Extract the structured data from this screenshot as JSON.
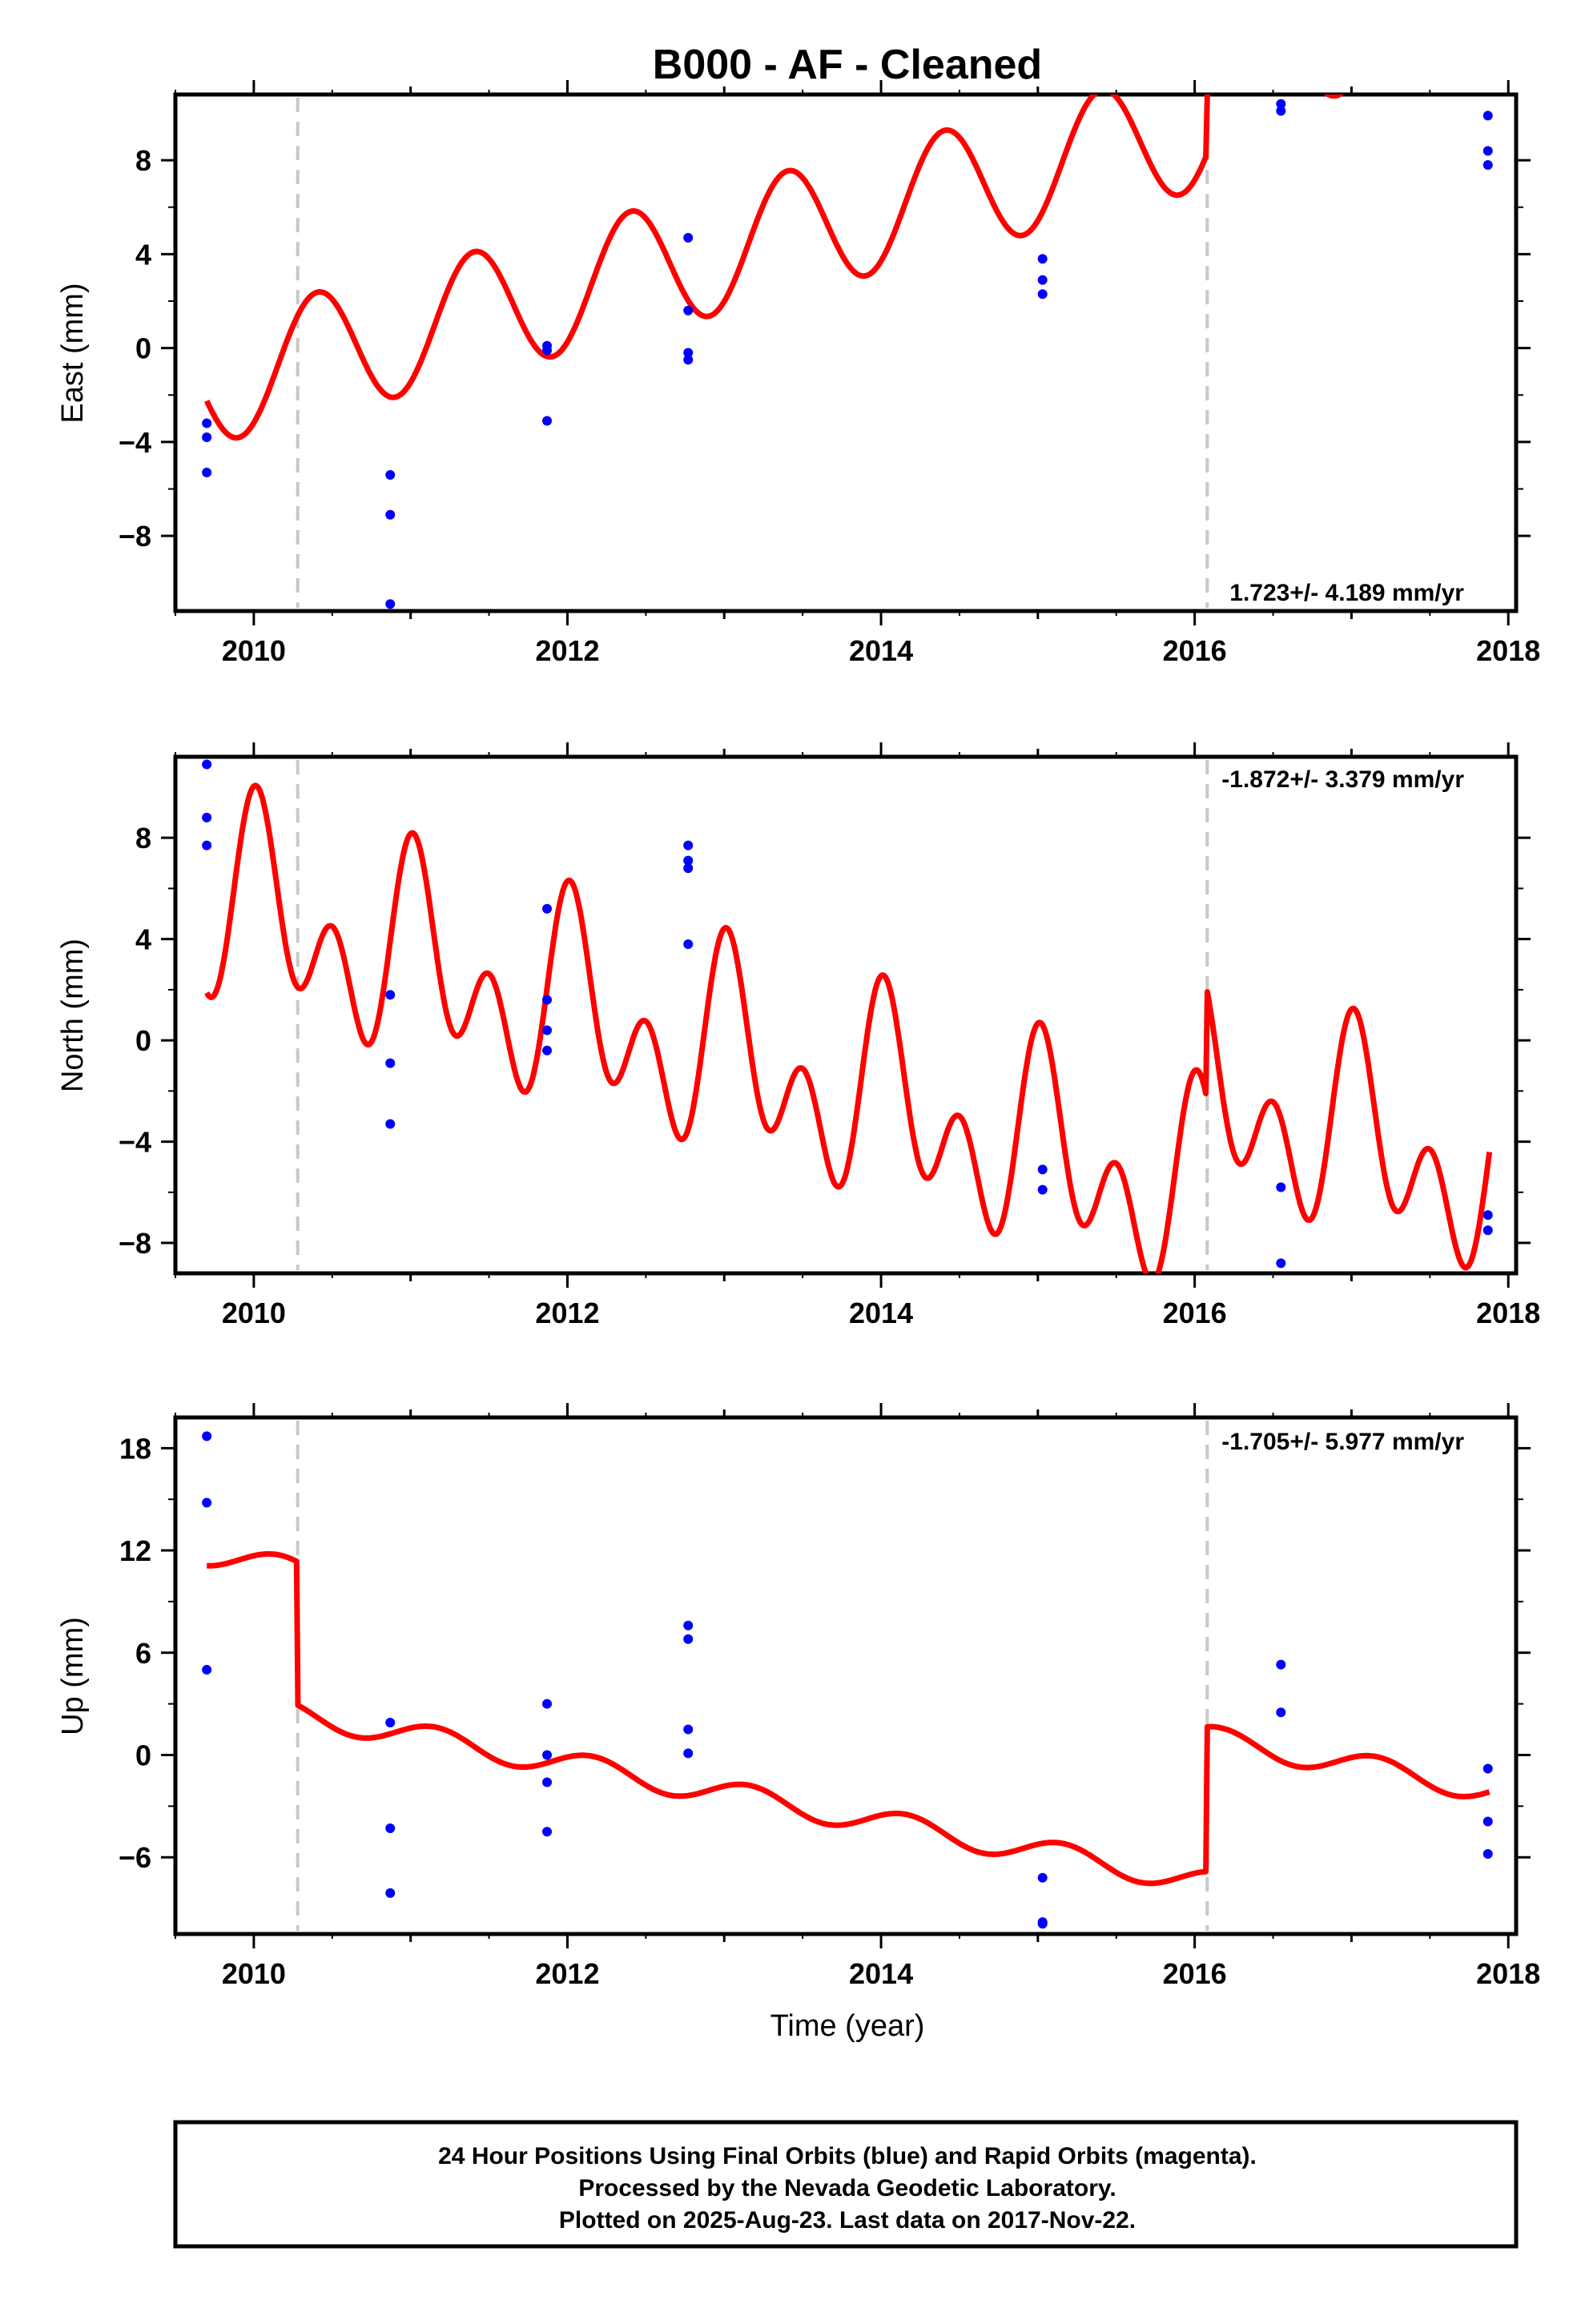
{
  "title": "B000  - AF - Cleaned",
  "xlabel": "Time (year)",
  "colors": {
    "model": "#ff0000",
    "final_orbits": "#0000ff",
    "steps": "#c8c8c8",
    "frame": "#000000"
  },
  "footer": {
    "line1": "24 Hour Positions Using Final Orbits (blue) and Rapid Orbits (magenta).",
    "line2": "Processed by the Nevada Geodetic Laboratory.",
    "line3": "Plotted on 2025-Aug-23. Last data on 2017-Nov-22."
  },
  "chart_data": [
    {
      "type": "scatter",
      "ylabel": "East (mm)",
      "rate": "1.723+/- 4.189 mm/yr",
      "xlim": [
        2009.5,
        2018.05
      ],
      "ylim": [
        -11.2,
        10.8
      ],
      "x_ticks": [
        2010,
        2012,
        2014,
        2016,
        2018
      ],
      "y_ticks": [
        -8,
        -4,
        0,
        4,
        8
      ],
      "steps": [
        2010.28,
        2016.08
      ],
      "points": [
        [
          2009.7,
          -3.2
        ],
        [
          2009.7,
          -3.8
        ],
        [
          2009.7,
          -5.3
        ],
        [
          2010.87,
          -5.4
        ],
        [
          2010.87,
          -7.1
        ],
        [
          2010.87,
          -10.9
        ],
        [
          2011.87,
          0.1
        ],
        [
          2011.87,
          -0.1
        ],
        [
          2011.87,
          -3.1
        ],
        [
          2012.77,
          4.7
        ],
        [
          2012.77,
          1.6
        ],
        [
          2012.77,
          -0.2
        ],
        [
          2012.77,
          -0.5
        ],
        [
          2015.03,
          3.8
        ],
        [
          2015.03,
          2.3
        ],
        [
          2015.03,
          2.9
        ],
        [
          2016.55,
          10.4
        ],
        [
          2016.55,
          10.1
        ],
        [
          2017.87,
          9.9
        ],
        [
          2017.87,
          8.4
        ],
        [
          2017.87,
          7.8
        ]
      ],
      "model": {
        "t0": 2009.7,
        "t1": 2017.88,
        "offset": -1.5,
        "trend": 1.723,
        "annual_sin": 1.5,
        "annual_cos": -2.2,
        "semiannual_sin": 0.0,
        "semiannual_cos": 0.0,
        "step_epochs": [
          2010.28,
          2016.08
        ],
        "step_sizes": [
          0.0,
          2.5
        ]
      }
    },
    {
      "type": "scatter",
      "ylabel": "North (mm)",
      "rate": "-1.872+/- 3.379 mm/yr",
      "xlim": [
        2009.5,
        2018.05
      ],
      "ylim": [
        -9.2,
        11.2
      ],
      "x_ticks": [
        2010,
        2012,
        2014,
        2016,
        2018
      ],
      "y_ticks": [
        -8,
        -4,
        0,
        4,
        8
      ],
      "steps": [
        2010.28,
        2016.08
      ],
      "points": [
        [
          2009.7,
          10.9
        ],
        [
          2009.7,
          8.8
        ],
        [
          2009.7,
          7.7
        ],
        [
          2010.87,
          1.8
        ],
        [
          2010.87,
          -0.9
        ],
        [
          2010.87,
          -3.3
        ],
        [
          2011.87,
          5.2
        ],
        [
          2011.87,
          1.6
        ],
        [
          2011.87,
          0.4
        ],
        [
          2011.87,
          -0.4
        ],
        [
          2012.77,
          7.7
        ],
        [
          2012.77,
          7.1
        ],
        [
          2012.77,
          6.8
        ],
        [
          2012.77,
          3.8
        ],
        [
          2015.03,
          -5.1
        ],
        [
          2015.03,
          -5.9
        ],
        [
          2016.55,
          -5.8
        ],
        [
          2016.55,
          -8.8
        ],
        [
          2017.87,
          -6.9
        ],
        [
          2017.87,
          -7.5
        ]
      ],
      "model": {
        "t0": 2009.7,
        "t1": 2017.88,
        "offset": 5.5,
        "trend": -1.872,
        "annual_sin": 0.8,
        "annual_cos": 2.3,
        "semiannual_sin": 0.2,
        "semiannual_cos": 2.8,
        "step_epochs": [
          2010.28,
          2016.08
        ],
        "step_sizes": [
          0.0,
          4.3
        ]
      }
    },
    {
      "type": "scatter",
      "ylabel": "Up (mm)",
      "rate": "-1.705+/- 5.977 mm/yr",
      "xlim": [
        2009.5,
        2018.05
      ],
      "ylim": [
        -10.5,
        19.8
      ],
      "x_ticks": [
        2010,
        2012,
        2014,
        2016,
        2018
      ],
      "y_ticks": [
        -6,
        0,
        6,
        12,
        18
      ],
      "steps": [
        2010.28,
        2016.08
      ],
      "points": [
        [
          2009.7,
          18.7
        ],
        [
          2009.7,
          14.8
        ],
        [
          2009.7,
          5.0
        ],
        [
          2010.87,
          1.9
        ],
        [
          2010.87,
          -4.3
        ],
        [
          2010.87,
          -8.1
        ],
        [
          2011.87,
          3.0
        ],
        [
          2011.87,
          0.0
        ],
        [
          2011.87,
          -1.6
        ],
        [
          2011.87,
          -4.5
        ],
        [
          2012.77,
          7.6
        ],
        [
          2012.77,
          6.8
        ],
        [
          2012.77,
          1.5
        ],
        [
          2012.77,
          0.1
        ],
        [
          2015.03,
          -7.2
        ],
        [
          2015.03,
          -9.8
        ],
        [
          2015.03,
          -9.9
        ],
        [
          2016.55,
          5.3
        ],
        [
          2016.55,
          2.5
        ],
        [
          2017.87,
          -0.8
        ],
        [
          2017.87,
          -3.9
        ],
        [
          2017.87,
          -5.8
        ]
      ],
      "model": {
        "t0": 2009.7,
        "t1": 2017.88,
        "offset": 11.8,
        "trend": -1.705,
        "annual_sin": 0.6,
        "annual_cos": 0.4,
        "semiannual_sin": 0.0,
        "semiannual_cos": 0.0,
        "step_epochs": [
          2010.28,
          2016.08
        ],
        "step_sizes": [
          -8.4,
          8.5
        ]
      }
    }
  ]
}
